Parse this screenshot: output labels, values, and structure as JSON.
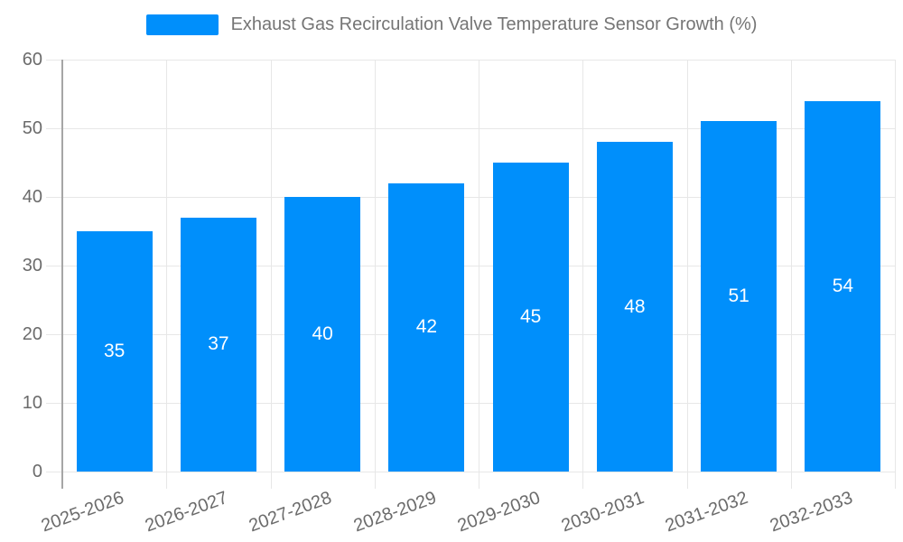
{
  "chart_data": {
    "type": "bar",
    "title": "",
    "legend": {
      "position": "top",
      "label": "Exhaust Gas Recirculation Valve Temperature Sensor Growth (%)"
    },
    "categories": [
      "2025-2026",
      "2026-2027",
      "2027-2028",
      "2028-2029",
      "2029-2030",
      "2030-2031",
      "2031-2032",
      "2032-2033"
    ],
    "series": [
      {
        "name": "Exhaust Gas Recirculation Valve Temperature Sensor Growth (%)",
        "values": [
          35,
          37,
          40,
          42,
          45,
          48,
          51,
          54
        ]
      }
    ],
    "data_labels": [
      "35",
      "37",
      "40",
      "42",
      "45",
      "48",
      "51",
      "54"
    ],
    "xlabel": "",
    "ylabel": "",
    "ylim": [
      0,
      60
    ],
    "yticks": [
      0,
      10,
      20,
      30,
      40,
      50,
      60
    ],
    "ytick_labels": [
      "0",
      "10",
      "20",
      "30",
      "40",
      "50",
      "60"
    ],
    "grid": true,
    "x_label_rotation_deg": -20,
    "colors": {
      "bar": "#008FFB",
      "grid": "#e7e7e7",
      "axis_line": "#a6a6a6",
      "tick_label": "#6b6b6b",
      "legend_text": "#757575",
      "data_label": "#ffffff",
      "background": "#ffffff"
    }
  }
}
